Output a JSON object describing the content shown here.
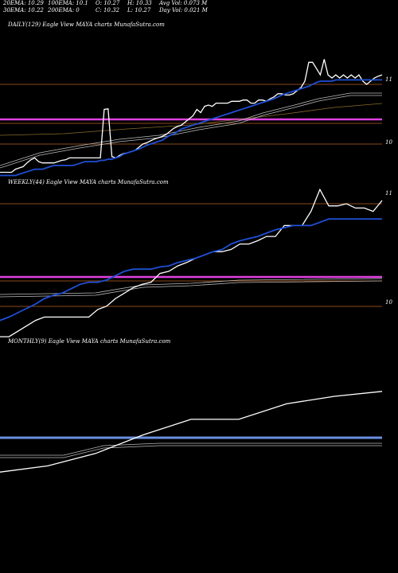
{
  "header": {
    "ema20": "20EMA: 10.29",
    "ema100": "100EMA: 10.1",
    "open": "O: 10.27",
    "high": "H: 10.33",
    "avg_vol": "Avg Vol: 0.073 M",
    "ema30": "30EMA: 10.22",
    "ema200": "200EMA: 0",
    "close": "C: 10.32",
    "low": "L: 10.27",
    "day_vol": "Day Vol: 0.021 M"
  },
  "colors": {
    "background": "#000000",
    "price": "#ffffff",
    "ema": "#1f4fd6",
    "level_magenta": "#e040e0",
    "level_brown": "#8b4a1a",
    "monthly_line": "#6a8fe0"
  },
  "chart_data": [
    {
      "type": "line",
      "title": "DAILY(129) Eagle  View  MAYA charts MunafaSutra.com",
      "y_ticks": [
        "11",
        "10"
      ],
      "series": [
        {
          "values": [
            9.55,
            9.55,
            9.55,
            9.55,
            9.6,
            9.62,
            9.64,
            9.7,
            9.75,
            9.78,
            9.72,
            9.7,
            9.7,
            9.7,
            9.7,
            9.72,
            9.74,
            9.75,
            9.78,
            9.78,
            9.78,
            9.78,
            9.78,
            9.78,
            9.78,
            9.78,
            9.78,
            10.55,
            10.56,
            9.8,
            9.78,
            9.82,
            9.85,
            9.86,
            9.88,
            9.9,
            9.95,
            10.0,
            10.02,
            10.05,
            10.08,
            10.1,
            10.12,
            10.15,
            10.2,
            10.25,
            10.28,
            10.3,
            10.35,
            10.4,
            10.45,
            10.55,
            10.5,
            10.6,
            10.62,
            10.6,
            10.65,
            10.65,
            10.65,
            10.65,
            10.68,
            10.68,
            10.68,
            10.7,
            10.7,
            10.65,
            10.65,
            10.7,
            10.7,
            10.68,
            10.72,
            10.75,
            10.8,
            10.8,
            10.78,
            10.78,
            10.8,
            10.85,
            10.9,
            11.0,
            11.3,
            11.3,
            11.2,
            11.1,
            11.35,
            11.1,
            11.05,
            11.1,
            11.05,
            11.1,
            11.05,
            11.1,
            11.05,
            11.1,
            11.0,
            10.95,
            11.0,
            11.05,
            11.08,
            11.1
          ]
        },
        {
          "values": [
            9.5,
            9.5,
            9.5,
            9.5,
            9.5,
            9.52,
            9.54,
            9.56,
            9.58,
            9.6,
            9.6,
            9.6,
            9.62,
            9.64,
            9.66,
            9.66,
            9.66,
            9.66,
            9.66,
            9.66,
            9.68,
            9.7,
            9.72,
            9.72,
            9.72,
            9.72,
            9.74,
            9.74,
            9.76,
            9.76,
            9.78,
            9.8,
            9.84,
            9.86,
            9.88,
            9.9,
            9.92,
            9.95,
            9.98,
            10.0,
            10.02,
            10.04,
            10.06,
            10.1,
            10.14,
            10.16,
            10.2,
            10.24,
            10.26,
            10.28,
            10.3,
            10.32,
            10.34,
            10.36,
            10.38,
            10.4,
            10.42,
            10.44,
            10.46,
            10.48,
            10.5,
            10.52,
            10.54,
            10.56,
            10.58,
            10.6,
            10.62,
            10.64,
            10.66,
            10.68,
            10.7,
            10.72,
            10.75,
            10.78,
            10.8,
            10.82,
            10.84,
            10.86,
            10.88,
            10.9,
            10.92,
            10.95,
            10.98,
            11.0,
            11.0,
            11.0,
            11.0,
            11.02,
            11.02,
            11.02,
            11.02,
            11.02,
            11.02,
            11.02,
            11.02,
            11.02,
            11.02,
            11.02,
            11.02,
            11.02
          ]
        }
      ]
    },
    {
      "type": "line",
      "title": "WEEKLY(44) Eagle  View  MAYA charts MunafaSutra.com",
      "y_ticks": [
        "11",
        "10"
      ],
      "series": [
        {
          "values": [
            9.7,
            9.7,
            9.75,
            9.8,
            9.85,
            9.88,
            9.88,
            9.88,
            9.88,
            9.88,
            9.88,
            9.95,
            9.98,
            10.05,
            10.1,
            10.15,
            10.18,
            10.2,
            10.28,
            10.3,
            10.35,
            10.38,
            10.42,
            10.45,
            10.48,
            10.48,
            10.5,
            10.55,
            10.55,
            10.58,
            10.62,
            10.62,
            10.72,
            10.72,
            10.72,
            10.85,
            11.05,
            10.9,
            10.9,
            10.92,
            10.88,
            10.88,
            10.85,
            10.95
          ]
        },
        {
          "values": [
            9.85,
            9.88,
            9.92,
            9.96,
            10.0,
            10.05,
            10.08,
            10.1,
            10.14,
            10.18,
            10.2,
            10.2,
            10.22,
            10.26,
            10.3,
            10.32,
            10.32,
            10.32,
            10.34,
            10.35,
            10.38,
            10.4,
            10.42,
            10.45,
            10.48,
            10.5,
            10.55,
            10.58,
            10.6,
            10.62,
            10.65,
            10.68,
            10.7,
            10.72,
            10.72,
            10.72,
            10.75,
            10.78,
            10.78,
            10.78,
            10.78,
            10.78,
            10.78,
            10.78
          ]
        }
      ]
    },
    {
      "type": "line",
      "title": "MONTHLY(9) Eagle  View  MAYA charts MunafaSutra.com",
      "y_ticks": [],
      "series": [
        {
          "values": [
            9.6,
            9.7,
            9.9,
            10.2,
            10.45,
            10.45,
            10.7,
            10.82,
            10.9
          ]
        }
      ]
    }
  ]
}
